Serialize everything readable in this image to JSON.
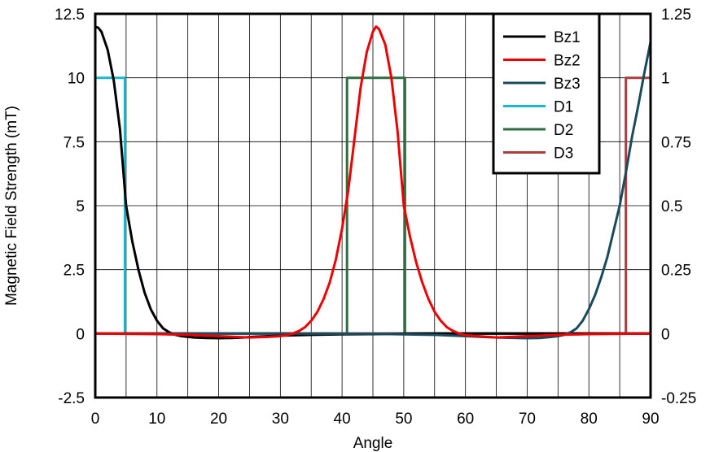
{
  "chart_data": {
    "type": "line",
    "xlabel": "Angle",
    "ylabel": "Magnetic Field Strength (mT)",
    "xlim": [
      0,
      90
    ],
    "ylim": [
      -2.5,
      12.5
    ],
    "y2lim": [
      -0.25,
      1.25
    ],
    "grid": true,
    "legend_position": "top-right",
    "x_ticks": [
      "0",
      "10",
      "20",
      "30",
      "40",
      "50",
      "60",
      "70",
      "80",
      "90"
    ],
    "y_ticks": [
      "-2.5",
      "0",
      "2.5",
      "5",
      "7.5",
      "10",
      "12.5"
    ],
    "y2_ticks": [
      "-0.25",
      "0",
      "0.25",
      "0.5",
      "0.75",
      "1",
      "1.25"
    ],
    "series": [
      {
        "name": "Bz1",
        "axis": "left",
        "color": "#000000",
        "x": [
          0,
          0.5,
          1,
          2,
          3,
          4,
          5,
          6,
          7,
          8,
          9,
          10,
          11,
          12,
          13,
          14,
          15,
          16,
          18,
          20,
          22,
          24,
          26,
          28,
          30,
          35,
          40,
          45,
          50,
          55,
          60,
          65,
          70,
          75,
          80,
          85,
          90
        ],
        "values": [
          12.0,
          11.95,
          11.8,
          11.1,
          9.9,
          8.0,
          5.0,
          3.6,
          2.5,
          1.6,
          0.95,
          0.5,
          0.2,
          0.05,
          -0.05,
          -0.1,
          -0.13,
          -0.15,
          -0.17,
          -0.18,
          -0.17,
          -0.15,
          -0.12,
          -0.1,
          -0.08,
          -0.05,
          -0.03,
          -0.02,
          -0.01,
          0,
          0,
          0,
          0,
          0,
          0,
          0,
          0
        ]
      },
      {
        "name": "Bz2",
        "axis": "left",
        "color": "#ee0000",
        "x": [
          0,
          10,
          15,
          20,
          25,
          28,
          30,
          31,
          32,
          33,
          34,
          35,
          36,
          37,
          38,
          39,
          40,
          41,
          42,
          43,
          44,
          45,
          45.5,
          46,
          47,
          48,
          49,
          50,
          51,
          52,
          53,
          54,
          55,
          56,
          57,
          58,
          59,
          60,
          62,
          65,
          70,
          75,
          80,
          90
        ],
        "values": [
          0,
          -0.02,
          -0.05,
          -0.1,
          -0.15,
          -0.13,
          -0.1,
          -0.06,
          0,
          0.1,
          0.25,
          0.5,
          0.85,
          1.35,
          2.0,
          2.9,
          4.1,
          5.6,
          7.6,
          9.6,
          11.0,
          11.8,
          12.0,
          11.9,
          11.3,
          10.0,
          7.9,
          5.0,
          3.8,
          2.8,
          2.0,
          1.35,
          0.85,
          0.5,
          0.25,
          0.1,
          0,
          -0.06,
          -0.1,
          -0.15,
          -0.1,
          -0.05,
          -0.02,
          0
        ]
      },
      {
        "name": "Bz3",
        "axis": "left",
        "color": "#1a4a5e",
        "x": [
          0,
          30,
          45,
          55,
          60,
          65,
          70,
          72,
          74,
          75,
          76,
          77,
          78,
          79,
          80,
          81,
          82,
          83,
          84,
          85,
          86,
          87,
          88,
          89,
          90
        ],
        "values": [
          0,
          0,
          -0.01,
          -0.05,
          -0.1,
          -0.15,
          -0.18,
          -0.17,
          -0.13,
          -0.1,
          -0.05,
          0.05,
          0.2,
          0.5,
          0.95,
          1.5,
          2.2,
          3.0,
          4.0,
          5.0,
          6.3,
          7.7,
          8.9,
          10.2,
          11.4
        ]
      },
      {
        "name": "D1",
        "axis": "right",
        "color": "#18b8cc",
        "x": [
          0,
          4.8,
          4.8,
          90
        ],
        "values": [
          1,
          1,
          0,
          0
        ]
      },
      {
        "name": "D2",
        "axis": "right",
        "color": "#2e6e40",
        "x": [
          0,
          40.8,
          40.8,
          50.2,
          50.2,
          90
        ],
        "values": [
          0,
          0,
          1,
          1,
          0,
          0
        ]
      },
      {
        "name": "D3",
        "axis": "right",
        "color": "#a83e3e",
        "x": [
          0,
          86,
          86,
          90
        ],
        "values": [
          0,
          0,
          1,
          1
        ]
      }
    ]
  }
}
